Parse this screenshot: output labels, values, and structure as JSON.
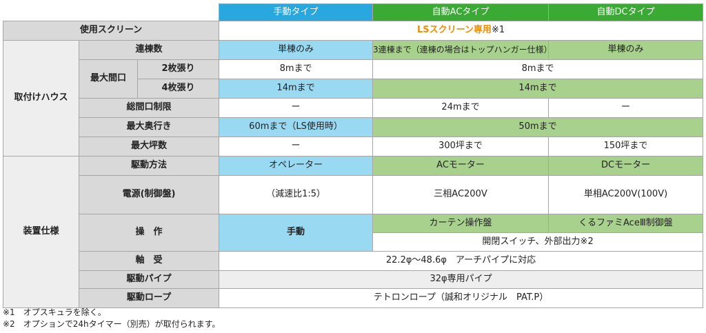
{
  "headers": {
    "manual": "手動タイプ",
    "auto_ac": "自動ACタイプ",
    "auto_dc": "自動DCタイプ"
  },
  "screen": {
    "label": "使用スクリーン",
    "value_highlight": "LSスクリーン専用",
    "value_note": "※1"
  },
  "house": {
    "group_label": "取付けハウス",
    "span_count": {
      "label": "連棟数",
      "manual": "単棟のみ",
      "ac": "3連棟まで（連棟の場合はトップハンガー仕様）",
      "dc": "単棟のみ"
    },
    "max_width": {
      "label": "最大間口",
      "two": {
        "label": "2枚張り",
        "manual": "8mまで",
        "auto": "8mまで"
      },
      "four": {
        "label": "4枚張り",
        "manual": "14mまで",
        "auto": "14mまで"
      }
    },
    "total_width": {
      "label": "総間口制限",
      "manual": "ー",
      "ac": "24mまで",
      "dc": "ー"
    },
    "max_depth": {
      "label": "最大奥行き",
      "manual": "60mまで（LS使用時）",
      "auto": "50mまで"
    },
    "max_area": {
      "label": "最大坪数",
      "manual": "ー",
      "ac": "300坪まで",
      "dc": "150坪まで"
    }
  },
  "device": {
    "group_label": "装置仕様",
    "drive": {
      "label": "駆動方法",
      "manual": "オペレーター",
      "ac": "ACモーター",
      "dc": "DCモーター"
    },
    "power": {
      "label": "電源(制御盤)",
      "manual": "（減速比1:5）",
      "ac": "三相AC200V",
      "dc": "単相AC200V(100V)"
    },
    "operation": {
      "label": "操　作",
      "manual": "手動",
      "ac": "カーテン操作盤",
      "dc": "くるファミAceⅢ制御盤",
      "auto_common": "開閉スイッチ、外部出力※2"
    },
    "bearing": {
      "label": "軸　受",
      "value": "22.2φ～48.6φ　アーチパイプに対応"
    },
    "drive_pipe": {
      "label": "駆動パイプ",
      "value": "32φ専用パイプ"
    },
    "drive_rope": {
      "label": "駆動ロープ",
      "value": "テトロンロープ（誠和オリジナル　PAT.P）"
    }
  },
  "notes": [
    "※1　オプスキュラを除く。",
    "※2　オプションで24hタイマー（別売）が取付られます。"
  ]
}
